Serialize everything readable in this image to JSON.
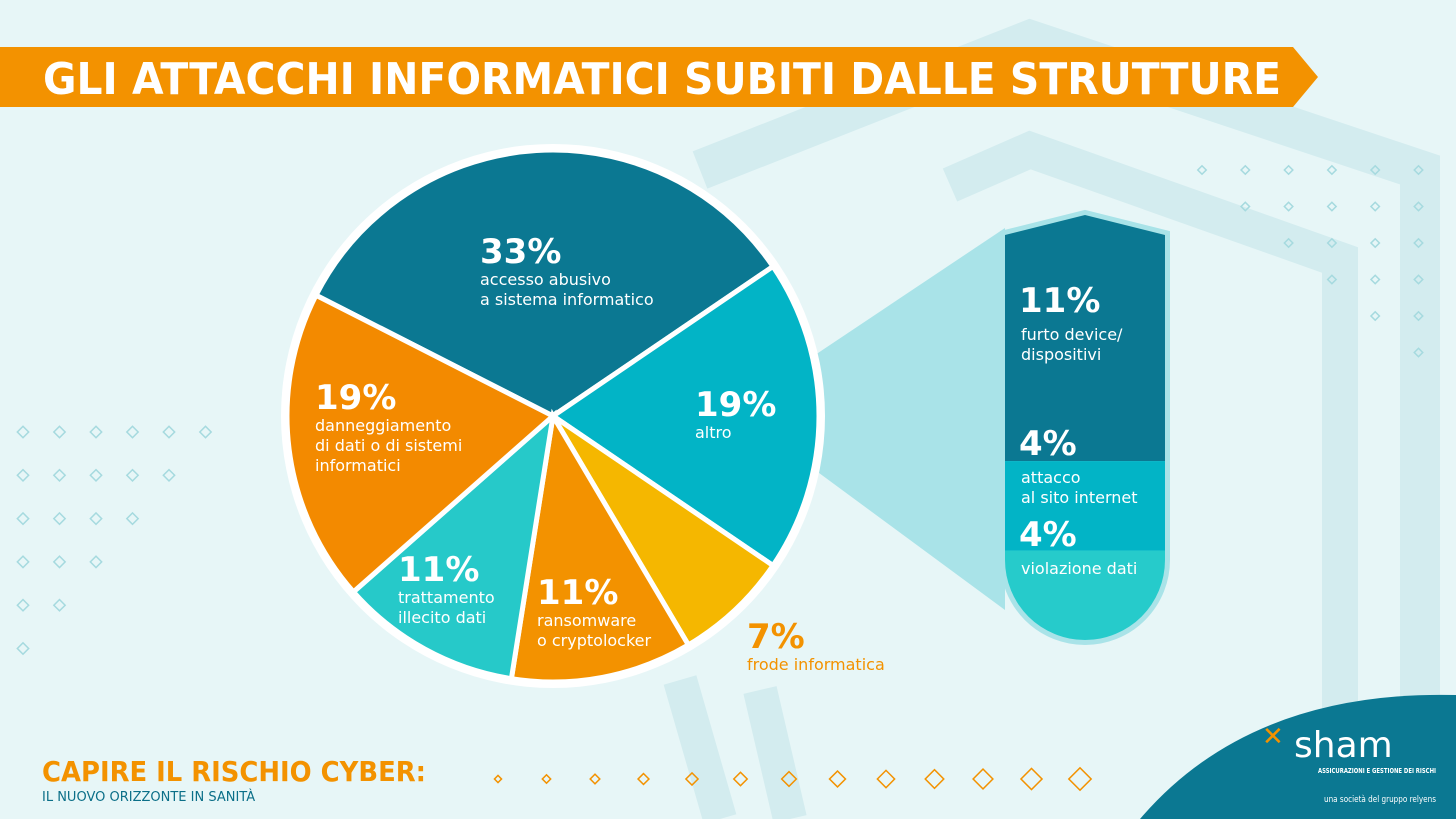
{
  "chart_data": {
    "type": "pie",
    "title": "GLI ATTACCHI INFORMATICI SUBITI DALLE STRUTTURE",
    "categories": [
      "accesso abusivo\na sistema informatico",
      "altro",
      "frode informatica",
      "ransomware\no cryptolocker",
      "trattamento\nillecito dati",
      "danneggiamento\ndi dati o di sistemi\ninformatici"
    ],
    "values": [
      33,
      19,
      7,
      11,
      11,
      19
    ],
    "value_labels": [
      "33%",
      "19%",
      "7%",
      "11%",
      "11%",
      "19%"
    ],
    "colors": [
      "#0b7892",
      "#02b4c6",
      "#f5b700",
      "#f39200",
      "#26c9c9",
      "#f38a00"
    ],
    "breakdown": {
      "categories": [
        "furto device/\ndispositivi",
        "attacco\nal sito internet",
        "violazione dati"
      ],
      "values": [
        11,
        4,
        4
      ],
      "value_labels": [
        "11%",
        "4%",
        "4%"
      ],
      "colors": [
        "#0b7892",
        "#02b4c6",
        "#26cbcb"
      ]
    }
  },
  "footer": {
    "title": "CAPIRE IL RISCHIO CYBER:",
    "subtitle": "IL NUOVO ORIZZONTE IN SANITÀ"
  },
  "logo": {
    "name": "sham",
    "tagline": "ASSICURAZIONI E GESTIONE DEI RISCHI",
    "group": "una società del gruppo relyens"
  }
}
